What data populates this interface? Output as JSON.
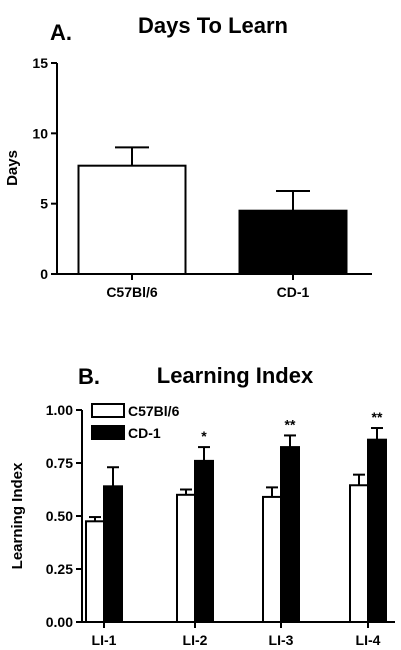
{
  "chart_data": [
    {
      "type": "bar",
      "panel": "A.",
      "title": "Days To Learn",
      "ylabel": "Days",
      "xlabel": "",
      "ylim": [
        0,
        15
      ],
      "yticks": [
        0,
        5,
        10,
        15
      ],
      "categories": [
        "C57Bl/6",
        "CD-1"
      ],
      "values": [
        7.7,
        4.5
      ],
      "errors": [
        1.3,
        1.4
      ],
      "colors": [
        "#ffffff",
        "#000000"
      ],
      "grid": false
    },
    {
      "type": "bar",
      "panel": "B.",
      "title": "Learning Index",
      "ylabel": "Learning Index",
      "xlabel": "",
      "ylim": [
        0,
        1.0
      ],
      "yticks": [
        "0.00",
        "0.25",
        "0.50",
        "0.75",
        "1.00"
      ],
      "categories": [
        "LI-1",
        "LI-2",
        "LI-3",
        "LI-4"
      ],
      "legend_position": "top-left",
      "series": [
        {
          "name": "C57Bl/6",
          "color": "#ffffff",
          "values": [
            0.475,
            0.6,
            0.59,
            0.645
          ],
          "errors": [
            0.02,
            0.025,
            0.045,
            0.05
          ]
        },
        {
          "name": "CD-1",
          "color": "#000000",
          "values": [
            0.64,
            0.76,
            0.825,
            0.86
          ],
          "errors": [
            0.09,
            0.065,
            0.055,
            0.055
          ]
        }
      ],
      "significance": [
        "",
        "*",
        "**",
        "**"
      ],
      "grid": false
    }
  ]
}
